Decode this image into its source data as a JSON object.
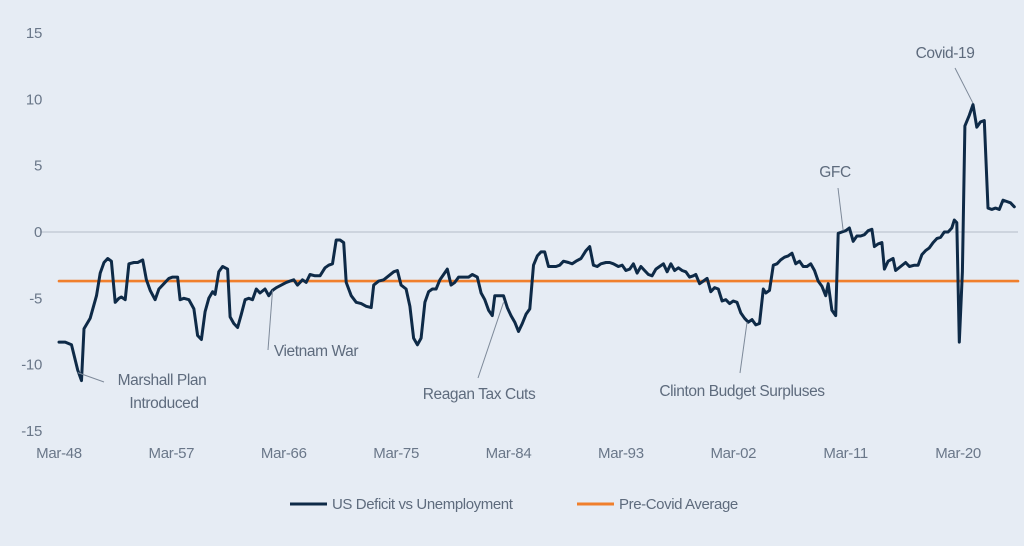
{
  "chart_data": {
    "type": "line",
    "title": "",
    "xlabel": "",
    "ylabel": "",
    "ylim": [
      -15,
      15
    ],
    "y_ticks": [
      "15",
      "10",
      "5",
      "0",
      "-5",
      "-10",
      "-15"
    ],
    "y_tick_values": [
      15,
      10,
      5,
      0,
      -5,
      -10,
      -15
    ],
    "x_ticks": [
      "Mar-48",
      "Mar-57",
      "Mar-66",
      "Mar-75",
      "Mar-84",
      "Mar-93",
      "Mar-02",
      "Mar-11",
      "Mar-20"
    ],
    "x_tick_years": [
      1948,
      1957,
      1966,
      1975,
      1984,
      1993,
      2002,
      2011,
      2020
    ],
    "xlim_years": [
      1948,
      2024.8
    ],
    "grid": false,
    "legend_position": "bottom",
    "series": [
      {
        "name": "US Deficit vs Unemployment",
        "color": "#0e2a47",
        "points": [
          [
            1948.0,
            -8.3
          ],
          [
            1948.5,
            -8.3
          ],
          [
            1949.0,
            -8.5
          ],
          [
            1949.5,
            -10.4
          ],
          [
            1949.8,
            -11.2
          ],
          [
            1950.0,
            -7.3
          ],
          [
            1950.5,
            -6.5
          ],
          [
            1951.0,
            -4.8
          ],
          [
            1951.3,
            -3.1
          ],
          [
            1951.6,
            -2.3
          ],
          [
            1951.9,
            -2.0
          ],
          [
            1952.2,
            -2.2
          ],
          [
            1952.5,
            -5.3
          ],
          [
            1952.8,
            -5.0
          ],
          [
            1953.0,
            -4.9
          ],
          [
            1953.3,
            -5.1
          ],
          [
            1953.6,
            -2.4
          ],
          [
            1954.0,
            -2.3
          ],
          [
            1954.3,
            -2.3
          ],
          [
            1954.7,
            -2.1
          ],
          [
            1955.0,
            -3.6
          ],
          [
            1955.3,
            -4.4
          ],
          [
            1955.7,
            -5.1
          ],
          [
            1956.0,
            -4.3
          ],
          [
            1956.4,
            -3.9
          ],
          [
            1956.8,
            -3.5
          ],
          [
            1957.1,
            -3.4
          ],
          [
            1957.5,
            -3.4
          ],
          [
            1957.7,
            -5.1
          ],
          [
            1958.0,
            -5.0
          ],
          [
            1958.4,
            -5.1
          ],
          [
            1958.8,
            -5.8
          ],
          [
            1959.1,
            -7.8
          ],
          [
            1959.4,
            -8.1
          ],
          [
            1959.7,
            -6.0
          ],
          [
            1960.0,
            -5.0
          ],
          [
            1960.3,
            -4.5
          ],
          [
            1960.5,
            -4.7
          ],
          [
            1960.8,
            -3.0
          ],
          [
            1961.1,
            -2.6
          ],
          [
            1961.5,
            -2.8
          ],
          [
            1961.7,
            -6.4
          ],
          [
            1962.0,
            -6.9
          ],
          [
            1962.3,
            -7.2
          ],
          [
            1962.6,
            -6.2
          ],
          [
            1962.9,
            -5.1
          ],
          [
            1963.2,
            -5.0
          ],
          [
            1963.5,
            -5.1
          ],
          [
            1963.8,
            -4.3
          ],
          [
            1964.1,
            -4.6
          ],
          [
            1964.5,
            -4.3
          ],
          [
            1964.8,
            -4.8
          ],
          [
            1965.1,
            -4.4
          ],
          [
            1965.4,
            -4.2
          ],
          [
            1965.8,
            -4.0
          ],
          [
            1966.2,
            -3.8
          ],
          [
            1966.5,
            -3.7
          ],
          [
            1966.8,
            -3.6
          ],
          [
            1967.1,
            -4.0
          ],
          [
            1967.5,
            -3.6
          ],
          [
            1967.8,
            -3.8
          ],
          [
            1968.1,
            -3.2
          ],
          [
            1968.5,
            -3.3
          ],
          [
            1968.9,
            -3.3
          ],
          [
            1969.3,
            -2.7
          ],
          [
            1969.6,
            -2.5
          ],
          [
            1969.9,
            -2.4
          ],
          [
            1970.2,
            -0.6
          ],
          [
            1970.5,
            -0.6
          ],
          [
            1970.8,
            -0.8
          ],
          [
            1971.0,
            -3.8
          ],
          [
            1971.4,
            -4.8
          ],
          [
            1971.8,
            -5.3
          ],
          [
            1972.2,
            -5.4
          ],
          [
            1972.6,
            -5.6
          ],
          [
            1973.0,
            -5.7
          ],
          [
            1973.2,
            -4.0
          ],
          [
            1973.6,
            -3.7
          ],
          [
            1974.0,
            -3.6
          ],
          [
            1974.4,
            -3.3
          ],
          [
            1974.8,
            -3.0
          ],
          [
            1975.1,
            -2.9
          ],
          [
            1975.4,
            -4.0
          ],
          [
            1975.8,
            -4.3
          ],
          [
            1976.1,
            -5.6
          ],
          [
            1976.4,
            -8.0
          ],
          [
            1976.7,
            -8.5
          ],
          [
            1977.0,
            -8.0
          ],
          [
            1977.3,
            -5.3
          ],
          [
            1977.6,
            -4.5
          ],
          [
            1977.9,
            -4.3
          ],
          [
            1978.2,
            -4.3
          ],
          [
            1978.5,
            -3.6
          ],
          [
            1978.8,
            -3.2
          ],
          [
            1979.1,
            -2.8
          ],
          [
            1979.4,
            -4.0
          ],
          [
            1979.7,
            -3.8
          ],
          [
            1980.0,
            -3.4
          ],
          [
            1980.4,
            -3.4
          ],
          [
            1980.8,
            -3.4
          ],
          [
            1981.1,
            -3.2
          ],
          [
            1981.5,
            -3.4
          ],
          [
            1981.8,
            -4.6
          ],
          [
            1982.1,
            -5.1
          ],
          [
            1982.4,
            -5.9
          ],
          [
            1982.7,
            -6.3
          ],
          [
            1982.9,
            -4.8
          ],
          [
            1983.2,
            -4.8
          ],
          [
            1983.6,
            -4.8
          ],
          [
            1983.9,
            -5.7
          ],
          [
            1984.2,
            -6.3
          ],
          [
            1984.5,
            -6.8
          ],
          [
            1984.8,
            -7.5
          ],
          [
            1985.1,
            -6.9
          ],
          [
            1985.4,
            -6.2
          ],
          [
            1985.7,
            -5.8
          ],
          [
            1986.0,
            -2.5
          ],
          [
            1986.3,
            -1.8
          ],
          [
            1986.6,
            -1.5
          ],
          [
            1986.9,
            -1.5
          ],
          [
            1987.2,
            -2.6
          ],
          [
            1987.5,
            -2.6
          ],
          [
            1987.8,
            -2.6
          ],
          [
            1988.1,
            -2.5
          ],
          [
            1988.4,
            -2.2
          ],
          [
            1988.8,
            -2.3
          ],
          [
            1989.1,
            -2.4
          ],
          [
            1989.4,
            -2.2
          ],
          [
            1989.8,
            -2.0
          ],
          [
            1990.2,
            -1.4
          ],
          [
            1990.5,
            -1.1
          ],
          [
            1990.8,
            -2.5
          ],
          [
            1991.1,
            -2.6
          ],
          [
            1991.4,
            -2.4
          ],
          [
            1991.8,
            -2.3
          ],
          [
            1992.1,
            -2.3
          ],
          [
            1992.4,
            -2.4
          ],
          [
            1992.8,
            -2.6
          ],
          [
            1993.1,
            -2.5
          ],
          [
            1993.4,
            -2.9
          ],
          [
            1993.7,
            -2.8
          ],
          [
            1994.0,
            -2.4
          ],
          [
            1994.3,
            -3.1
          ],
          [
            1994.6,
            -2.6
          ],
          [
            1994.9,
            -2.9
          ],
          [
            1995.2,
            -3.2
          ],
          [
            1995.5,
            -3.3
          ],
          [
            1995.8,
            -2.8
          ],
          [
            1996.1,
            -2.6
          ],
          [
            1996.4,
            -2.4
          ],
          [
            1996.7,
            -3.0
          ],
          [
            1997.0,
            -2.4
          ],
          [
            1997.3,
            -2.9
          ],
          [
            1997.6,
            -2.7
          ],
          [
            1997.9,
            -2.9
          ],
          [
            1998.2,
            -3.0
          ],
          [
            1998.5,
            -3.4
          ],
          [
            1998.8,
            -3.3
          ],
          [
            1999.0,
            -3.2
          ],
          [
            1999.3,
            -3.9
          ],
          [
            1999.6,
            -3.7
          ],
          [
            1999.9,
            -3.5
          ],
          [
            2000.2,
            -4.5
          ],
          [
            2000.5,
            -4.2
          ],
          [
            2000.8,
            -4.3
          ],
          [
            2001.1,
            -5.2
          ],
          [
            2001.4,
            -5.1
          ],
          [
            2001.7,
            -5.4
          ],
          [
            2002.0,
            -5.2
          ],
          [
            2002.3,
            -5.3
          ],
          [
            2002.6,
            -6.1
          ],
          [
            2002.9,
            -6.5
          ],
          [
            2003.2,
            -6.8
          ],
          [
            2003.5,
            -6.6
          ],
          [
            2003.8,
            -7.0
          ],
          [
            2004.1,
            -6.9
          ],
          [
            2004.4,
            -4.3
          ],
          [
            2004.6,
            -4.6
          ],
          [
            2004.9,
            -4.4
          ],
          [
            2005.2,
            -2.5
          ],
          [
            2005.5,
            -2.4
          ],
          [
            2005.8,
            -2.1
          ],
          [
            2006.1,
            -1.9
          ],
          [
            2006.4,
            -1.8
          ],
          [
            2006.7,
            -1.6
          ],
          [
            2007.0,
            -2.4
          ],
          [
            2007.3,
            -2.2
          ],
          [
            2007.6,
            -2.6
          ],
          [
            2007.9,
            -2.6
          ],
          [
            2008.2,
            -2.4
          ],
          [
            2008.5,
            -2.9
          ],
          [
            2008.8,
            -3.7
          ],
          [
            2009.1,
            -4.1
          ],
          [
            2009.4,
            -4.8
          ],
          [
            2009.6,
            -3.9
          ],
          [
            2009.9,
            -5.9
          ],
          [
            2010.2,
            -6.3
          ],
          [
            2010.4,
            -0.1
          ],
          [
            2010.7,
            0.0
          ],
          [
            2011.0,
            0.1
          ],
          [
            2011.3,
            0.3
          ],
          [
            2011.6,
            -0.7
          ],
          [
            2011.9,
            -0.3
          ],
          [
            2012.2,
            -0.3
          ],
          [
            2012.5,
            -0.2
          ],
          [
            2012.8,
            0.1
          ],
          [
            2013.1,
            0.2
          ],
          [
            2013.3,
            -1.1
          ],
          [
            2013.6,
            -0.9
          ],
          [
            2013.9,
            -0.8
          ],
          [
            2014.1,
            -2.8
          ],
          [
            2014.4,
            -2.2
          ],
          [
            2014.8,
            -2.0
          ],
          [
            2015.0,
            -2.9
          ],
          [
            2015.4,
            -2.6
          ],
          [
            2015.8,
            -2.3
          ],
          [
            2016.1,
            -2.6
          ],
          [
            2016.5,
            -2.5
          ],
          [
            2016.8,
            -2.5
          ],
          [
            2017.1,
            -1.7
          ],
          [
            2017.4,
            -1.4
          ],
          [
            2017.7,
            -1.2
          ],
          [
            2018.0,
            -0.8
          ],
          [
            2018.3,
            -0.5
          ],
          [
            2018.6,
            -0.4
          ],
          [
            2018.9,
            0.0
          ],
          [
            2019.2,
            0.0
          ],
          [
            2019.5,
            0.3
          ],
          [
            2019.7,
            0.9
          ],
          [
            2019.9,
            0.7
          ],
          [
            2020.1,
            -8.3
          ],
          [
            2020.35,
            -3.0
          ],
          [
            2020.55,
            8.0
          ],
          [
            2020.9,
            8.8
          ],
          [
            2021.2,
            9.6
          ],
          [
            2021.5,
            7.9
          ],
          [
            2021.8,
            8.3
          ],
          [
            2022.1,
            8.4
          ],
          [
            2022.4,
            1.8
          ],
          [
            2022.7,
            1.7
          ],
          [
            2023.0,
            1.8
          ],
          [
            2023.3,
            1.7
          ],
          [
            2023.6,
            2.4
          ],
          [
            2023.9,
            2.3
          ],
          [
            2024.2,
            2.2
          ],
          [
            2024.5,
            1.9
          ]
        ]
      },
      {
        "name": "Pre-Covid Average",
        "color": "#f07f2c",
        "points": [
          [
            1948.0,
            -3.7
          ],
          [
            2024.8,
            -3.7
          ]
        ]
      }
    ],
    "annotations": [
      {
        "text_lines": [
          "Marshall Plan",
          "Introduced"
        ],
        "point": [
          1949.5,
          -10.6
        ]
      },
      {
        "text_lines": [
          "Vietnam War"
        ],
        "point": [
          1965.1,
          -4.4
        ]
      },
      {
        "text_lines": [
          "Reagan Tax Cuts"
        ],
        "point": [
          1983.6,
          -5.3
        ]
      },
      {
        "text_lines": [
          "Clinton Budget Surpluses"
        ],
        "point": [
          2003.1,
          -6.8
        ]
      },
      {
        "text_lines": [
          "GFC"
        ],
        "point": [
          2010.8,
          0.1
        ]
      },
      {
        "text_lines": [
          "Covid-19"
        ],
        "point": [
          2021.2,
          9.7
        ]
      }
    ]
  }
}
